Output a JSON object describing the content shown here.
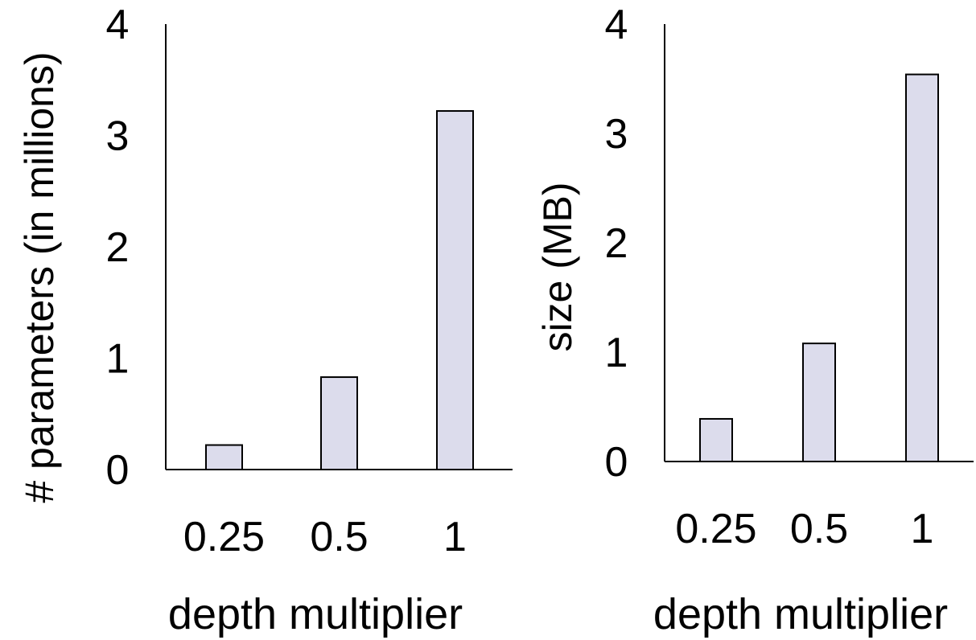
{
  "chart_data": [
    {
      "type": "bar",
      "categories": [
        "0.25",
        "0.5",
        "1"
      ],
      "values": [
        0.22,
        0.83,
        3.22
      ],
      "xlabel": "depth multiplier",
      "ylabel": "# parameters (in millions)",
      "ylim": [
        0,
        4
      ],
      "yticks": [
        "0",
        "1",
        "2",
        "3",
        "4"
      ],
      "grid": false,
      "bar_color": "#dcdcec",
      "edge_color": "#000000"
    },
    {
      "type": "bar",
      "categories": [
        "0.25",
        "0.5",
        "1"
      ],
      "values": [
        0.39,
        1.08,
        3.54
      ],
      "xlabel": "depth multiplier",
      "ylabel": "size (MB)",
      "ylim": [
        0,
        4
      ],
      "yticks": [
        "0",
        "1",
        "2",
        "3",
        "4"
      ],
      "grid": false,
      "bar_color": "#dcdcec",
      "edge_color": "#000000"
    }
  ]
}
